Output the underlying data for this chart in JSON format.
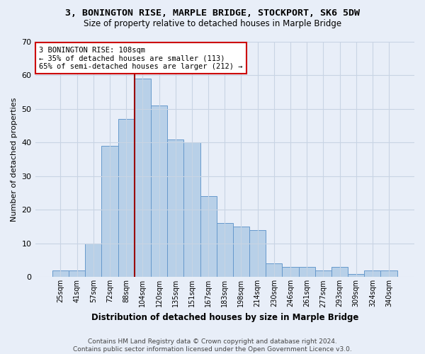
{
  "title_line1": "3, BONINGTON RISE, MARPLE BRIDGE, STOCKPORT, SK6 5DW",
  "title_line2": "Size of property relative to detached houses in Marple Bridge",
  "xlabel": "Distribution of detached houses by size in Marple Bridge",
  "ylabel": "Number of detached properties",
  "categories": [
    "25sqm",
    "41sqm",
    "57sqm",
    "72sqm",
    "88sqm",
    "104sqm",
    "120sqm",
    "135sqm",
    "151sqm",
    "167sqm",
    "183sqm",
    "198sqm",
    "214sqm",
    "230sqm",
    "246sqm",
    "261sqm",
    "277sqm",
    "293sqm",
    "309sqm",
    "324sqm",
    "340sqm"
  ],
  "values": [
    2,
    2,
    10,
    39,
    47,
    59,
    51,
    41,
    40,
    24,
    16,
    15,
    14,
    4,
    3,
    3,
    2,
    3,
    1,
    2,
    2
  ],
  "bar_color": "#b8d0e8",
  "bar_edge_color": "#6699cc",
  "vline_color": "#990000",
  "vline_index": 5,
  "annotation_text": "3 BONINGTON RISE: 108sqm\n← 35% of detached houses are smaller (113)\n65% of semi-detached houses are larger (212) →",
  "annotation_box_color": "white",
  "annotation_box_edge": "#cc0000",
  "ylim": [
    0,
    70
  ],
  "grid_color": "#c8d4e4",
  "background_color": "#e8eef8",
  "footer_line1": "Contains HM Land Registry data © Crown copyright and database right 2024.",
  "footer_line2": "Contains public sector information licensed under the Open Government Licence v3.0."
}
